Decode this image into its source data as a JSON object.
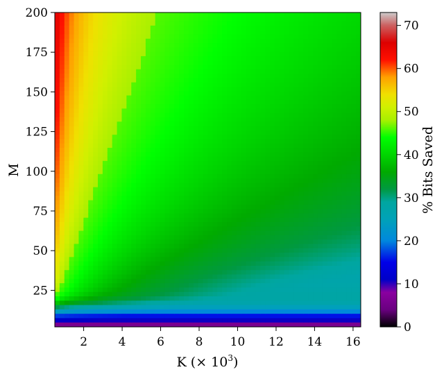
{
  "chart_data": {
    "type": "heatmap",
    "title": "",
    "xlabel": "K (× 10",
    "xlabel_sup": "3",
    "xlabel_suffix": ")",
    "ylabel": "M",
    "xlim": [
      0.5,
      16.4
    ],
    "ylim": [
      2,
      200
    ],
    "xticks": [
      2,
      4,
      6,
      8,
      10,
      12,
      14,
      16
    ],
    "yticks": [
      25,
      50,
      75,
      100,
      125,
      150,
      175,
      200
    ],
    "colorbar": {
      "label": "% Bits Saved",
      "range": [
        0,
        73
      ],
      "ticks": [
        0,
        10,
        20,
        30,
        40,
        50,
        60,
        70
      ],
      "colormap": "nipy_spectral",
      "stops": [
        {
          "v": 0,
          "color": "#000000"
        },
        {
          "v": 4,
          "color": "#6a0080"
        },
        {
          "v": 8,
          "color": "#8a00a0"
        },
        {
          "v": 11,
          "color": "#0000c8"
        },
        {
          "v": 15,
          "color": "#0000e8"
        },
        {
          "v": 20,
          "color": "#0088dd"
        },
        {
          "v": 25,
          "color": "#00a2b8"
        },
        {
          "v": 29,
          "color": "#00a6a0"
        },
        {
          "v": 32,
          "color": "#009940"
        },
        {
          "v": 36,
          "color": "#00aa00"
        },
        {
          "v": 40,
          "color": "#00d600"
        },
        {
          "v": 44,
          "color": "#00ff00"
        },
        {
          "v": 48,
          "color": "#a8f000"
        },
        {
          "v": 51,
          "color": "#d0f000"
        },
        {
          "v": 54,
          "color": "#f0e000"
        },
        {
          "v": 58,
          "color": "#ffa000"
        },
        {
          "v": 62,
          "color": "#ff1000"
        },
        {
          "v": 66,
          "color": "#dd0000"
        },
        {
          "v": 70,
          "color": "#cc6060"
        },
        {
          "v": 73,
          "color": "#cccccc"
        }
      ]
    },
    "samples": [
      {
        "x": 0.6,
        "y": 190,
        "value": 63
      },
      {
        "x": 1.0,
        "y": 175,
        "value": 57
      },
      {
        "x": 1.5,
        "y": 190,
        "value": 55
      },
      {
        "x": 2.0,
        "y": 100,
        "value": 50
      },
      {
        "x": 5.0,
        "y": 175,
        "value": 49
      },
      {
        "x": 4.0,
        "y": 100,
        "value": 45
      },
      {
        "x": 10.0,
        "y": 150,
        "value": 44
      },
      {
        "x": 8.0,
        "y": 90,
        "value": 42
      },
      {
        "x": 14.0,
        "y": 75,
        "value": 37
      },
      {
        "x": 12.0,
        "y": 60,
        "value": 33
      },
      {
        "x": 6.0,
        "y": 40,
        "value": 30
      },
      {
        "x": 14.0,
        "y": 40,
        "value": 28
      },
      {
        "x": 4.0,
        "y": 25,
        "value": 26
      },
      {
        "x": 12.0,
        "y": 20,
        "value": 22
      },
      {
        "x": 10.0,
        "y": 12,
        "value": 17
      },
      {
        "x": 8.0,
        "y": 8,
        "value": 12
      },
      {
        "x": 6.0,
        "y": 5,
        "value": 7
      },
      {
        "x": 12.0,
        "y": 3,
        "value": 5
      }
    ]
  }
}
